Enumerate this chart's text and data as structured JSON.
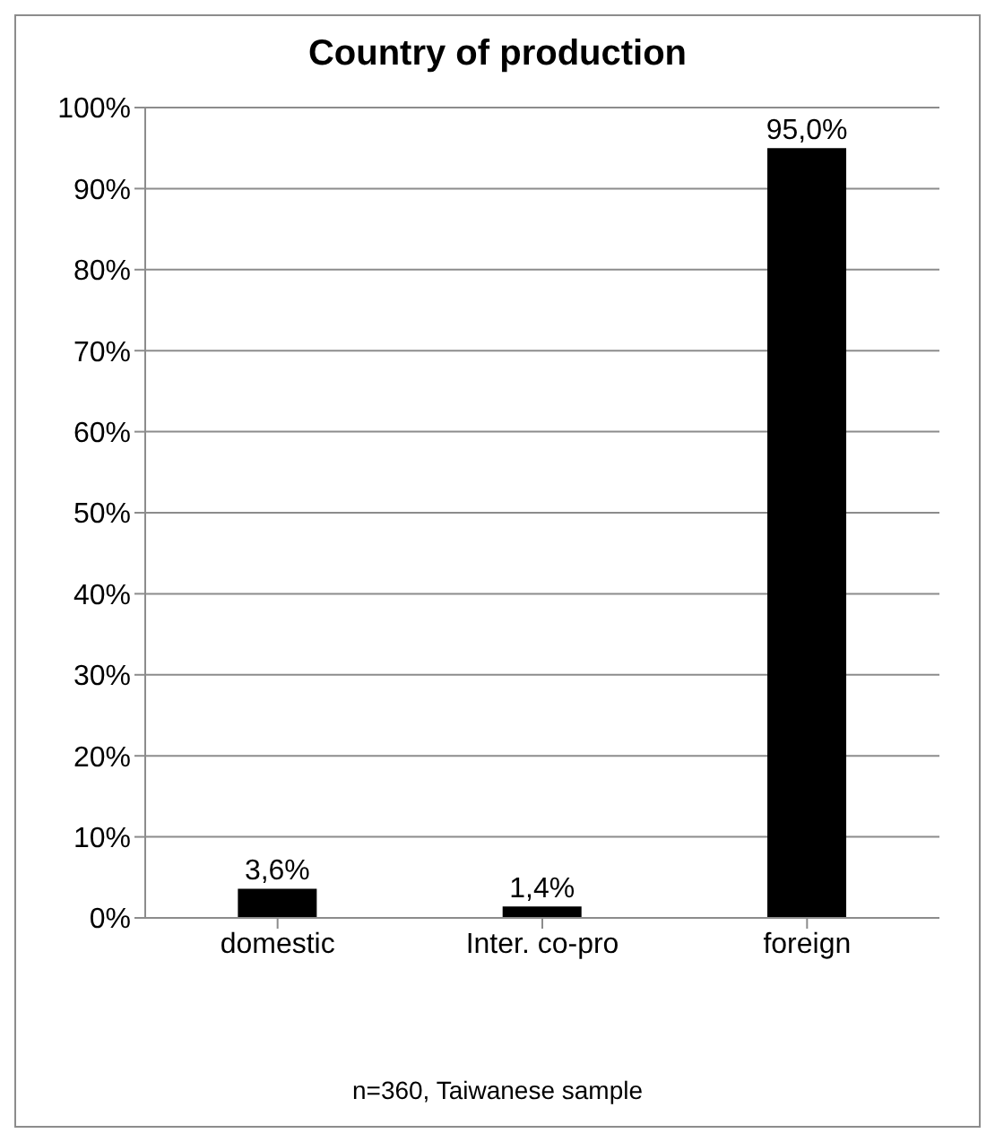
{
  "chart_data": {
    "type": "bar",
    "title": "Country of production",
    "categories": [
      "domestic",
      "Inter. co-pro",
      "foreign"
    ],
    "values": [
      3.6,
      1.4,
      95.0
    ],
    "color": "#000000",
    "value_labels": [
      "3,6%",
      "1,4%",
      "95,0%"
    ],
    "ylim": [
      0,
      100
    ],
    "yticks": [
      {
        "value": 0,
        "label": "0%"
      },
      {
        "value": 10,
        "label": "10%"
      },
      {
        "value": 20,
        "label": "20%"
      },
      {
        "value": 30,
        "label": "30%"
      },
      {
        "value": 40,
        "label": "40%"
      },
      {
        "value": 50,
        "label": "50%"
      },
      {
        "value": 60,
        "label": "60%"
      },
      {
        "value": 70,
        "label": "70%"
      },
      {
        "value": 80,
        "label": "80%"
      },
      {
        "value": 90,
        "label": "90%"
      },
      {
        "value": 100,
        "label": "100%"
      }
    ],
    "grid": "y",
    "legend": false,
    "annotations": [
      "n=360, Taiwanese sample"
    ]
  }
}
